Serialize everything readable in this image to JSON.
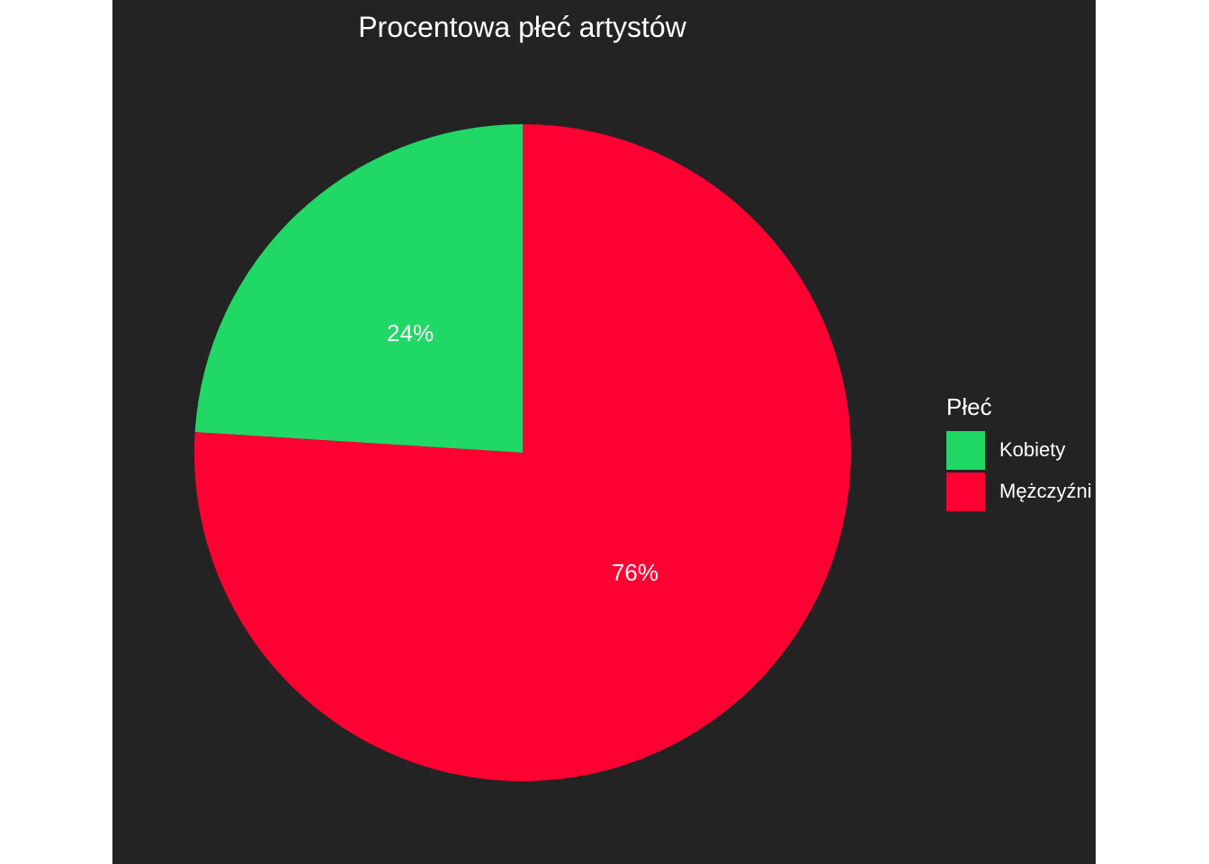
{
  "chart_data": {
    "type": "pie",
    "title": "Procentowa płeć artystów",
    "legend_title": "Płeć",
    "legend_position": "right",
    "slices": [
      {
        "name": "Kobiety",
        "value": 24,
        "label": "24%",
        "color": "#20d865"
      },
      {
        "name": "Mężczyźni",
        "value": 76,
        "label": "76%",
        "color": "#ff0033"
      }
    ],
    "background": "#232323",
    "text_color": "#ffffff"
  }
}
